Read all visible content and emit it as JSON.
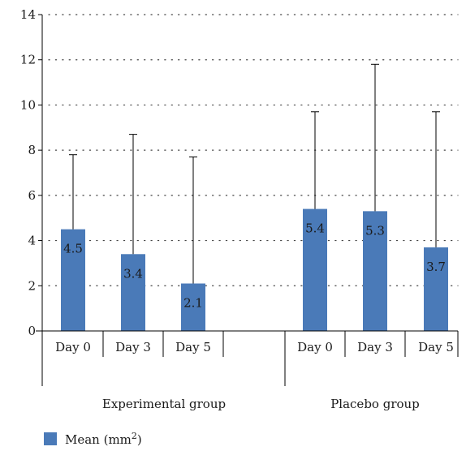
{
  "chart_data": {
    "type": "bar",
    "categories": [
      "Day 0",
      "Day 3",
      "Day 5",
      "Day 0",
      "Day 3",
      "Day 5"
    ],
    "groups": [
      {
        "label": "Experimental group",
        "categories": [
          "Day 0",
          "Day 3",
          "Day 5"
        ]
      },
      {
        "label": "Placebo group",
        "categories": [
          "Day 0",
          "Day 3",
          "Day 5"
        ]
      }
    ],
    "series": [
      {
        "name": "Mean (mm²)",
        "values": [
          4.5,
          3.4,
          2.1,
          5.4,
          5.3,
          3.7
        ],
        "error_upper": [
          7.8,
          8.7,
          7.7,
          9.7,
          11.8,
          9.7
        ],
        "data_labels": [
          "4.5",
          "3.4",
          "2.1",
          "5.4",
          "5.3",
          "3.7"
        ]
      }
    ],
    "ylim": [
      0,
      14
    ],
    "yticks": [
      "0",
      "2",
      "4",
      "6",
      "8",
      "10",
      "12",
      "14"
    ],
    "grid": "horizontal-dotted",
    "legend": {
      "position": "bottom-left",
      "label": "Mean (mm",
      "sup": "2",
      "label_end": ")"
    },
    "colors": {
      "bar": "#4a7ab8",
      "grid": "#444444",
      "axis": "#000000"
    }
  }
}
